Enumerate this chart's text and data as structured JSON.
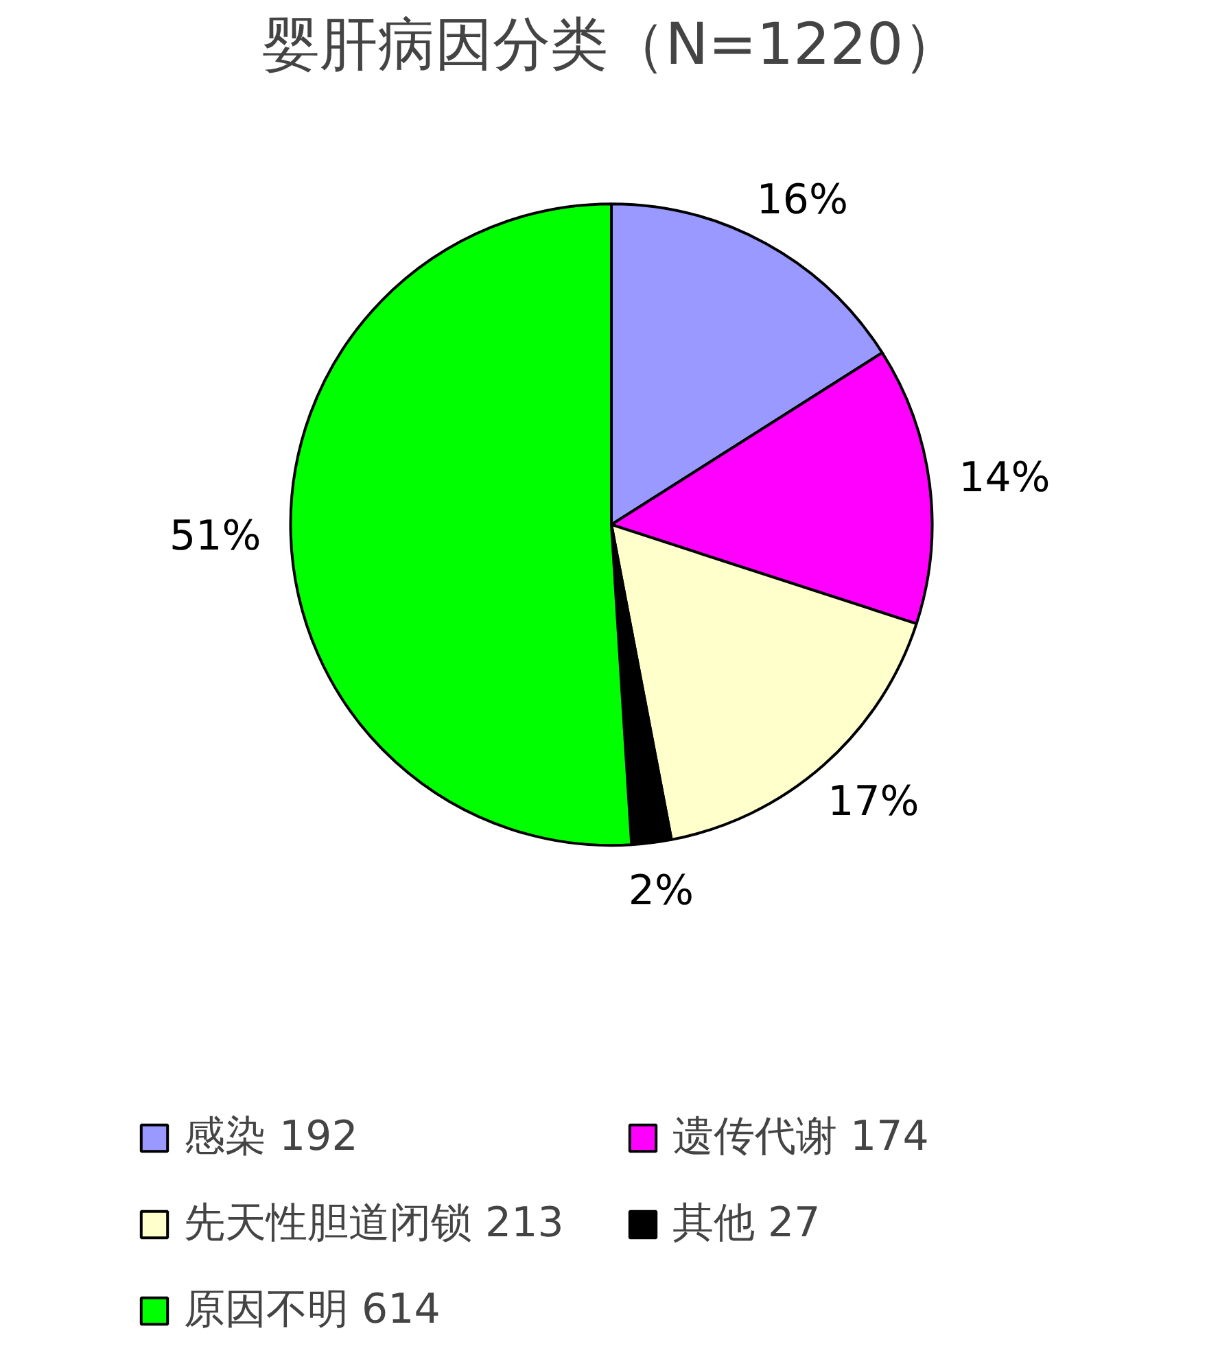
{
  "chart_data": {
    "type": "pie",
    "title": "婴肝病因分类（N=1220）",
    "categories": [
      "感染 192",
      "遗传代谢 174",
      "先天性胆道闭锁 213",
      "其他 27",
      "原因不明 614"
    ],
    "values": [
      16,
      14,
      17,
      2,
      51
    ],
    "value_labels": [
      "16%",
      "14%",
      "17%",
      "2%",
      "51%"
    ],
    "colors": [
      "#9999ff",
      "#ff00ff",
      "#ffffcc",
      "#000000",
      "#00ff00"
    ],
    "legend": "bottom"
  }
}
